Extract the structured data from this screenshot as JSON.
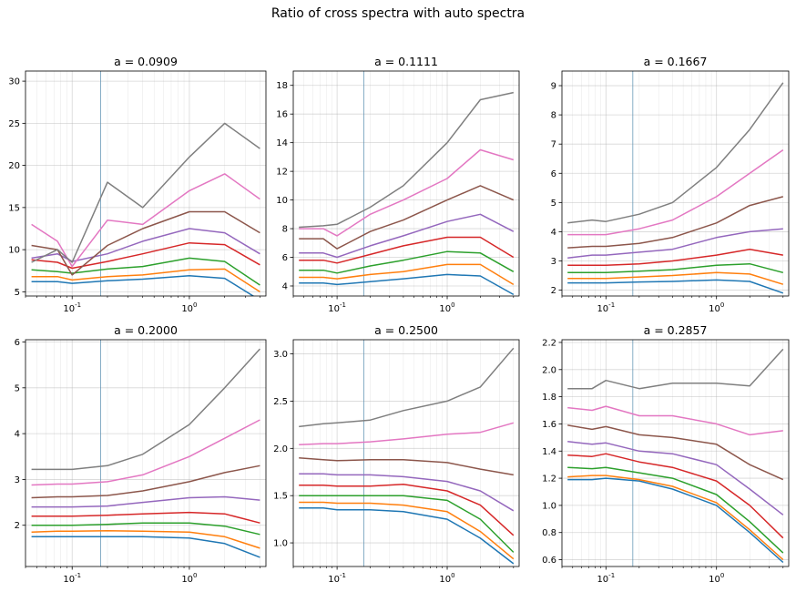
{
  "figure": {
    "title": "Ratio of cross spectra with auto spectra"
  },
  "colors": [
    "#1f77b4",
    "#ff7f0e",
    "#2ca02c",
    "#d62728",
    "#9467bd",
    "#8c564b",
    "#e377c2",
    "#7f7f7f"
  ],
  "chart_data": [
    {
      "type": "line",
      "title": "a = 0.0909",
      "xscale": "log",
      "xlim": [
        0.04,
        4.5
      ],
      "ylim": [
        4.5,
        31.2
      ],
      "yticks": [
        5,
        10,
        15,
        20,
        25,
        30
      ],
      "vline_x": 0.175,
      "grid": true,
      "x": [
        0.045,
        0.075,
        0.1,
        0.2,
        0.4,
        1.0,
        2.0,
        4.0
      ],
      "series": [
        {
          "values": [
            6.2,
            6.2,
            6.0,
            6.3,
            6.5,
            6.9,
            6.6,
            4.0
          ]
        },
        {
          "values": [
            6.8,
            6.8,
            6.4,
            6.8,
            7.0,
            7.6,
            7.7,
            5.0
          ]
        },
        {
          "values": [
            7.6,
            7.4,
            7.2,
            7.7,
            8.0,
            9.0,
            8.6,
            5.8
          ]
        },
        {
          "values": [
            8.8,
            8.5,
            7.8,
            8.6,
            9.5,
            10.8,
            10.6,
            8.2
          ]
        },
        {
          "values": [
            9.0,
            9.5,
            8.6,
            9.5,
            11.0,
            12.5,
            12.0,
            9.5
          ]
        },
        {
          "values": [
            10.5,
            10.0,
            7.0,
            10.5,
            12.5,
            14.5,
            14.5,
            12.0
          ]
        },
        {
          "values": [
            13.0,
            11.0,
            8.0,
            13.5,
            13.0,
            17.0,
            19.0,
            16.0
          ]
        },
        {
          "values": [
            8.5,
            10.0,
            8.5,
            18.0,
            15.0,
            21.0,
            25.0,
            22.0
          ]
        }
      ]
    },
    {
      "type": "line",
      "title": "a = 0.1111",
      "xscale": "log",
      "xlim": [
        0.04,
        4.5
      ],
      "ylim": [
        3.3,
        19.0
      ],
      "yticks": [
        4,
        6,
        8,
        10,
        12,
        14,
        16,
        18
      ],
      "vline_x": 0.175,
      "grid": true,
      "x": [
        0.045,
        0.075,
        0.1,
        0.2,
        0.4,
        1.0,
        2.0,
        4.0
      ],
      "series": [
        {
          "values": [
            4.2,
            4.2,
            4.1,
            4.3,
            4.5,
            4.8,
            4.7,
            3.4
          ]
        },
        {
          "values": [
            4.6,
            4.6,
            4.5,
            4.8,
            5.0,
            5.5,
            5.5,
            4.1
          ]
        },
        {
          "values": [
            5.1,
            5.1,
            4.9,
            5.4,
            5.8,
            6.4,
            6.3,
            5.0
          ]
        },
        {
          "values": [
            5.8,
            5.8,
            5.6,
            6.2,
            6.8,
            7.4,
            7.4,
            6.0
          ]
        },
        {
          "values": [
            6.3,
            6.3,
            6.0,
            6.8,
            7.5,
            8.5,
            9.0,
            7.8
          ]
        },
        {
          "values": [
            7.3,
            7.3,
            6.6,
            7.8,
            8.6,
            10.0,
            11.0,
            10.0
          ]
        },
        {
          "values": [
            8.0,
            8.0,
            7.5,
            9.0,
            10.0,
            11.5,
            13.5,
            12.8
          ]
        },
        {
          "values": [
            8.1,
            8.2,
            8.3,
            9.5,
            11.0,
            14.0,
            17.0,
            17.5
          ]
        }
      ]
    },
    {
      "type": "line",
      "title": "a = 0.1667",
      "xscale": "log",
      "xlim": [
        0.04,
        4.5
      ],
      "ylim": [
        1.8,
        9.5
      ],
      "yticks": [
        2,
        3,
        4,
        5,
        6,
        7,
        8,
        9
      ],
      "vline_x": 0.175,
      "grid": true,
      "x": [
        0.045,
        0.075,
        0.1,
        0.2,
        0.4,
        1.0,
        2.0,
        4.0
      ],
      "series": [
        {
          "values": [
            2.25,
            2.25,
            2.25,
            2.28,
            2.3,
            2.35,
            2.3,
            1.9
          ]
        },
        {
          "values": [
            2.4,
            2.4,
            2.4,
            2.45,
            2.5,
            2.6,
            2.55,
            2.2
          ]
        },
        {
          "values": [
            2.6,
            2.6,
            2.6,
            2.65,
            2.7,
            2.85,
            2.9,
            2.6
          ]
        },
        {
          "values": [
            2.85,
            2.85,
            2.85,
            2.9,
            3.0,
            3.2,
            3.4,
            3.2
          ]
        },
        {
          "values": [
            3.1,
            3.2,
            3.2,
            3.3,
            3.4,
            3.8,
            4.0,
            4.1
          ]
        },
        {
          "values": [
            3.45,
            3.5,
            3.5,
            3.6,
            3.8,
            4.3,
            4.9,
            5.2
          ]
        },
        {
          "values": [
            3.9,
            3.9,
            3.9,
            4.1,
            4.4,
            5.2,
            6.0,
            6.8
          ]
        },
        {
          "values": [
            4.3,
            4.4,
            4.35,
            4.6,
            5.0,
            6.2,
            7.5,
            9.1
          ]
        }
      ]
    },
    {
      "type": "line",
      "title": "a = 0.2000",
      "xscale": "log",
      "xlim": [
        0.04,
        4.5
      ],
      "ylim": [
        1.1,
        6.05
      ],
      "yticks": [
        2,
        3,
        4,
        5,
        6
      ],
      "vline_x": 0.175,
      "grid": true,
      "x": [
        0.045,
        0.075,
        0.1,
        0.2,
        0.4,
        1.0,
        2.0,
        4.0
      ],
      "series": [
        {
          "values": [
            1.75,
            1.75,
            1.75,
            1.75,
            1.75,
            1.72,
            1.6,
            1.3
          ]
        },
        {
          "values": [
            1.85,
            1.87,
            1.87,
            1.88,
            1.87,
            1.85,
            1.75,
            1.5
          ]
        },
        {
          "values": [
            2.0,
            2.0,
            2.0,
            2.02,
            2.05,
            2.05,
            1.98,
            1.8
          ]
        },
        {
          "values": [
            2.2,
            2.2,
            2.2,
            2.22,
            2.25,
            2.28,
            2.25,
            2.05
          ]
        },
        {
          "values": [
            2.4,
            2.4,
            2.4,
            2.42,
            2.5,
            2.6,
            2.62,
            2.55
          ]
        },
        {
          "values": [
            2.6,
            2.62,
            2.62,
            2.65,
            2.75,
            2.95,
            3.15,
            3.3
          ]
        },
        {
          "values": [
            2.88,
            2.9,
            2.9,
            2.95,
            3.1,
            3.5,
            3.9,
            4.3
          ]
        },
        {
          "values": [
            3.22,
            3.22,
            3.22,
            3.3,
            3.55,
            4.2,
            5.0,
            5.85
          ]
        }
      ]
    },
    {
      "type": "line",
      "title": "a = 0.2500",
      "xscale": "log",
      "xlim": [
        0.04,
        4.5
      ],
      "ylim": [
        0.75,
        3.15
      ],
      "yticks": [
        1.0,
        1.5,
        2.0,
        2.5,
        3.0
      ],
      "vline_x": 0.175,
      "grid": true,
      "x": [
        0.045,
        0.075,
        0.1,
        0.2,
        0.4,
        1.0,
        2.0,
        4.0
      ],
      "series": [
        {
          "values": [
            1.37,
            1.37,
            1.35,
            1.35,
            1.33,
            1.25,
            1.05,
            0.78
          ]
        },
        {
          "values": [
            1.43,
            1.43,
            1.42,
            1.42,
            1.4,
            1.33,
            1.12,
            0.83
          ]
        },
        {
          "values": [
            1.5,
            1.5,
            1.5,
            1.5,
            1.5,
            1.45,
            1.25,
            0.9
          ]
        },
        {
          "values": [
            1.61,
            1.61,
            1.6,
            1.6,
            1.62,
            1.55,
            1.4,
            1.08
          ]
        },
        {
          "values": [
            1.73,
            1.73,
            1.72,
            1.72,
            1.7,
            1.65,
            1.55,
            1.34
          ]
        },
        {
          "values": [
            1.9,
            1.88,
            1.87,
            1.88,
            1.88,
            1.85,
            1.78,
            1.72
          ]
        },
        {
          "values": [
            2.04,
            2.05,
            2.05,
            2.07,
            2.1,
            2.15,
            2.17,
            2.27
          ]
        },
        {
          "values": [
            2.23,
            2.26,
            2.27,
            2.3,
            2.4,
            2.5,
            2.65,
            3.06
          ]
        }
      ]
    },
    {
      "type": "line",
      "title": "a = 0.2857",
      "xscale": "log",
      "xlim": [
        0.04,
        4.5
      ],
      "ylim": [
        0.55,
        2.22
      ],
      "yticks": [
        0.6,
        0.8,
        1.0,
        1.2,
        1.4,
        1.6,
        1.8,
        2.0,
        2.2
      ],
      "vline_x": 0.175,
      "grid": true,
      "x": [
        0.045,
        0.075,
        0.1,
        0.2,
        0.4,
        1.0,
        2.0,
        4.0
      ],
      "series": [
        {
          "values": [
            1.19,
            1.19,
            1.2,
            1.18,
            1.12,
            1.0,
            0.8,
            0.58
          ]
        },
        {
          "values": [
            1.21,
            1.22,
            1.22,
            1.19,
            1.14,
            1.02,
            0.82,
            0.6
          ]
        },
        {
          "values": [
            1.28,
            1.27,
            1.28,
            1.24,
            1.2,
            1.08,
            0.88,
            0.65
          ]
        },
        {
          "values": [
            1.37,
            1.36,
            1.38,
            1.32,
            1.28,
            1.18,
            1.0,
            0.76
          ]
        },
        {
          "values": [
            1.47,
            1.45,
            1.46,
            1.4,
            1.38,
            1.3,
            1.12,
            0.93
          ]
        },
        {
          "values": [
            1.59,
            1.56,
            1.58,
            1.52,
            1.5,
            1.45,
            1.3,
            1.19
          ]
        },
        {
          "values": [
            1.72,
            1.7,
            1.73,
            1.66,
            1.66,
            1.6,
            1.52,
            1.55
          ]
        },
        {
          "values": [
            1.86,
            1.86,
            1.92,
            1.86,
            1.9,
            1.9,
            1.88,
            2.15
          ]
        }
      ]
    }
  ]
}
